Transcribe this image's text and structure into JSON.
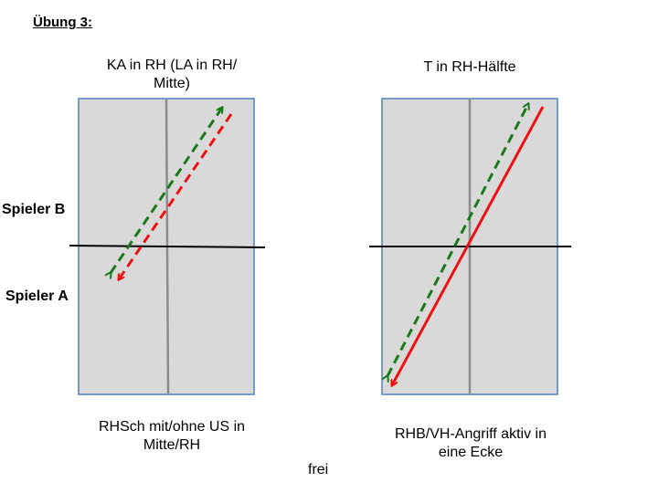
{
  "title": "Übung 3:",
  "left": {
    "top_caption_line1": "KA in RH (LA in RH/",
    "top_caption_line2": "Mitte)",
    "bottom_caption_line1": "RHSch mit/ohne US in",
    "bottom_caption_line2": "Mitte/RH"
  },
  "right": {
    "top_caption": "T in RH-Hälfte",
    "bottom_caption_line1": "RHB/VH-Angriff aktiv in",
    "bottom_caption_line2": "eine Ecke"
  },
  "player_b": "Spieler B",
  "player_a": "Spieler A",
  "footer": "frei",
  "colors": {
    "table_fill": "#d9d9d9",
    "table_border": "#4f81bd",
    "center_line": "#8c8c8c",
    "net": "#000000",
    "green_arrow": "#1a7a1a",
    "red_arrow": "#ee1111"
  }
}
